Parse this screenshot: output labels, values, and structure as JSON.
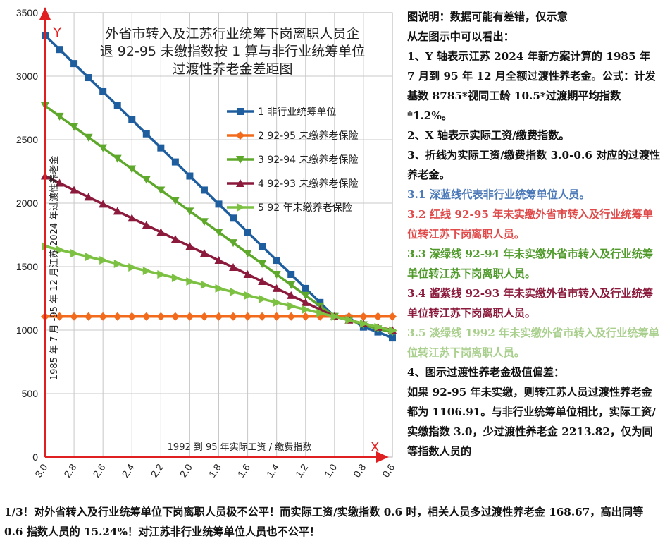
{
  "chart_data": {
    "type": "line",
    "title": "外省市转入及江苏行业统筹下岗离职人员企退 92-95 未缴指数按 1 算与非行业统筹单位过渡性养老金差距图",
    "title_lines": [
      "外省市转入及江苏行业统筹下岗离职人员企",
      "退 92-95 未缴指数按 1 算与非行业统筹单位",
      "过渡性养老金差距图"
    ],
    "xlabel": "1992 到 95 年实际工资 / 缴费指数",
    "ylabel": "1985 年 7 月 -95 年 12 月江苏 2024 年过渡性养老金",
    "x_axis_letter": "X",
    "y_axis_letter": "Y",
    "xlim": [
      3.0,
      0.6
    ],
    "ylim": [
      0,
      3500
    ],
    "x_ticks": [
      "3.0",
      "2.8",
      "2.6",
      "2.4",
      "2.2",
      "2.0",
      "1.8",
      "1.6",
      "1.4",
      "1.2",
      "1.0",
      "0.8",
      "0.6"
    ],
    "y_ticks": [
      "0",
      "500",
      "1000",
      "1500",
      "2000",
      "2500",
      "3000",
      "3500"
    ],
    "x": [
      3.0,
      2.9,
      2.8,
      2.7,
      2.6,
      2.5,
      2.4,
      2.3,
      2.2,
      2.1,
      2.0,
      1.9,
      1.8,
      1.7,
      1.6,
      1.5,
      1.4,
      1.3,
      1.2,
      1.1,
      1.0,
      0.9,
      0.8,
      0.7,
      0.6
    ],
    "grid": true,
    "legend_position": "right",
    "series": [
      {
        "name": "1 非行业统筹单位",
        "color": "#1f5e9e",
        "marker": "square",
        "values": [
          3320.73,
          3210.05,
          3099.36,
          2988.66,
          2877.97,
          2767.28,
          2656.59,
          2545.89,
          2435.19,
          2324.51,
          2213.82,
          2103.12,
          1992.43,
          1881.74,
          1771.05,
          1660.36,
          1549.67,
          1438.97,
          1328.28,
          1217.59,
          1106.91,
          1096.22,
          1023.93,
          985.41,
          938.24
        ]
      },
      {
        "name": "2 92-95 未缴养老保险",
        "color": "#f26b1d",
        "marker": "diamond",
        "values": [
          1106.91,
          1106.91,
          1106.91,
          1106.91,
          1106.91,
          1106.91,
          1106.91,
          1106.91,
          1106.91,
          1106.91,
          1106.91,
          1106.91,
          1106.91,
          1106.91,
          1106.91,
          1106.91,
          1106.91,
          1106.91,
          1106.91,
          1106.91,
          1106.91,
          1106.91,
          1106.91,
          1106.91,
          1106.91
        ]
      },
      {
        "name": "3 92-94 未缴养老保险",
        "color": "#5ea82b",
        "marker": "triangle-down",
        "values": [
          2767.28,
          2684.25,
          2601.23,
          2518.21,
          2435.19,
          2352.17,
          2269.15,
          2186.13,
          2103.12,
          2020.09,
          1937.07,
          1854.05,
          1771.05,
          1688.01,
          1604.99,
          1521.97,
          1438.97,
          1355.93,
          1272.91,
          1189.89,
          1106.91,
          1079.39,
          1041.35,
          1009.84,
          983.29
        ]
      },
      {
        "name": "4 92-93 未缴养老保险",
        "color": "#8b1a3c",
        "marker": "triangle-up",
        "values": [
          2213.82,
          2158.47,
          2103.12,
          2047.78,
          1992.43,
          1937.09,
          1881.74,
          1826.39,
          1771.05,
          1715.71,
          1660.36,
          1605.01,
          1549.67,
          1494.32,
          1438.97,
          1383.63,
          1328.28,
          1272.94,
          1217.59,
          1162.25,
          1106.91,
          1079.21,
          1051.54,
          1023.88,
          1000.2
        ]
      },
      {
        "name": "5 92 年未缴养老保险",
        "color": "#7cc142",
        "marker": "triangle-right",
        "values": [
          1660.36,
          1632.69,
          1605.01,
          1577.34,
          1549.67,
          1522.0,
          1494.32,
          1466.65,
          1438.97,
          1411.31,
          1383.63,
          1355.96,
          1328.28,
          1300.61,
          1272.94,
          1245.27,
          1217.59,
          1189.92,
          1162.25,
          1134.58,
          1106.91,
          1079.24,
          1051.56,
          1023.89,
          996.21
        ]
      }
    ]
  },
  "notes": {
    "heading": "图说明：数据可能有差错，仅示意",
    "intro": "从左图示中可以看出：",
    "p1": "1、Y 轴表示江苏 2024 年新方案计算的 1985 年 7 月到 95 年 12 月全额过渡性养老金。公式：计发基数 8785*视同工龄 10.5*过渡期平均指数*1.2%。",
    "p2": "2、X 轴表示实际工资/缴费指数。",
    "p3": "3、折线为实际工资/缴费指数 3.0-0.6 对应的过渡性养老金。",
    "p31": "3.1 深蓝线代表非行业统筹单位人员。",
    "p32": "3.2 红线 92-95 年未实缴外省市转入及行业统筹单位转江苏下岗离职人员。",
    "p33": "3.3 深绿线 92-94 年未实缴外省市转入及行业统筹单位转江苏下岗离职人员。",
    "p34": "3.4 酱紫线 92-93 年未实缴外省市转入及行业统筹单位转江苏下岗离职人员。",
    "p35": "3.5 淡绿线 1992 年未实缴外省市转入及行业统筹单位转江苏下岗离职人员。",
    "p4": "4、图示过渡性养老金极值偏差：",
    "p4b": "如果 92-95 年未实缴，则转江苏人员过渡性养老金都为 1106.91。与非行业统筹单位相比，实际工资/实缴指数 3.0，少过渡性养老金 2213.82，仅为同等指数人员的",
    "bottom": "1/3！对外省转入及行业统筹单位下岗离职人员极不公平！而实际工资/实缴指数 0.6 时，相关人员多过渡性养老金 168.67，高出同等 0.6 指数人员的 15.24%！对江苏非行业统筹单位人员也不公平！",
    "color_blue": "#4a78b8",
    "color_red": "#e04a4a",
    "color_darkgreen": "#4f9a2a",
    "color_purple": "#8b1a3c",
    "color_lightgreen": "#a9cf8c"
  }
}
